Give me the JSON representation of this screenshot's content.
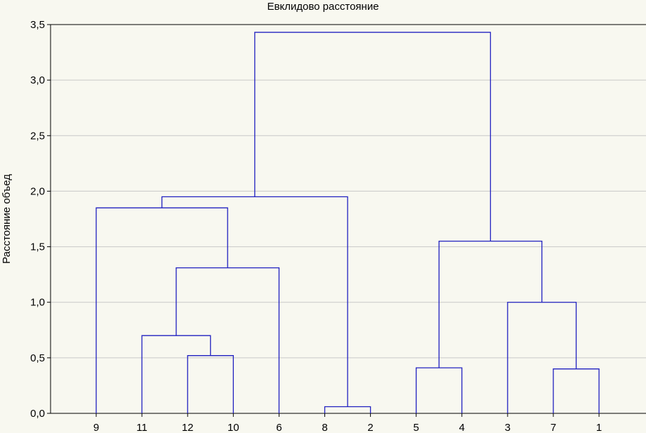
{
  "chart_data": {
    "type": "dendrogram",
    "title": "Евклидово расстояние",
    "xlabel": "",
    "ylabel": "Расстояние объед",
    "ylim": [
      0,
      3.5
    ],
    "y_ticks": [
      0,
      0.5,
      1.0,
      1.5,
      2.0,
      2.5,
      3.0,
      3.5
    ],
    "y_tick_labels": [
      "0,0",
      "0,5",
      "1,0",
      "1,5",
      "2,0",
      "2,5",
      "3,0",
      "3,5"
    ],
    "grid": true,
    "link_color": "#2020c0",
    "leaves": [
      "9",
      "11",
      "12",
      "10",
      "6",
      "8",
      "2",
      "5",
      "4",
      "3",
      "7",
      "1"
    ],
    "merges": [
      {
        "id": "c1",
        "left": "12",
        "right": "10",
        "height": 0.52
      },
      {
        "id": "c2",
        "left": "11",
        "right": "c1",
        "height": 0.7
      },
      {
        "id": "c3",
        "left": "c2",
        "right": "6",
        "height": 1.31
      },
      {
        "id": "c4",
        "left": "9",
        "right": "c3",
        "height": 1.85
      },
      {
        "id": "c5",
        "left": "8",
        "right": "2",
        "height": 0.06
      },
      {
        "id": "c6",
        "left": "c4",
        "right": "c5",
        "height": 1.95
      },
      {
        "id": "c7",
        "left": "5",
        "right": "4",
        "height": 0.41
      },
      {
        "id": "c8",
        "left": "7",
        "right": "1",
        "height": 0.4
      },
      {
        "id": "c9",
        "left": "3",
        "right": "c8",
        "height": 1.0
      },
      {
        "id": "c10",
        "left": "c7",
        "right": "c9",
        "height": 1.55
      },
      {
        "id": "c11",
        "left": "c6",
        "right": "c10",
        "height": 3.43
      }
    ]
  }
}
